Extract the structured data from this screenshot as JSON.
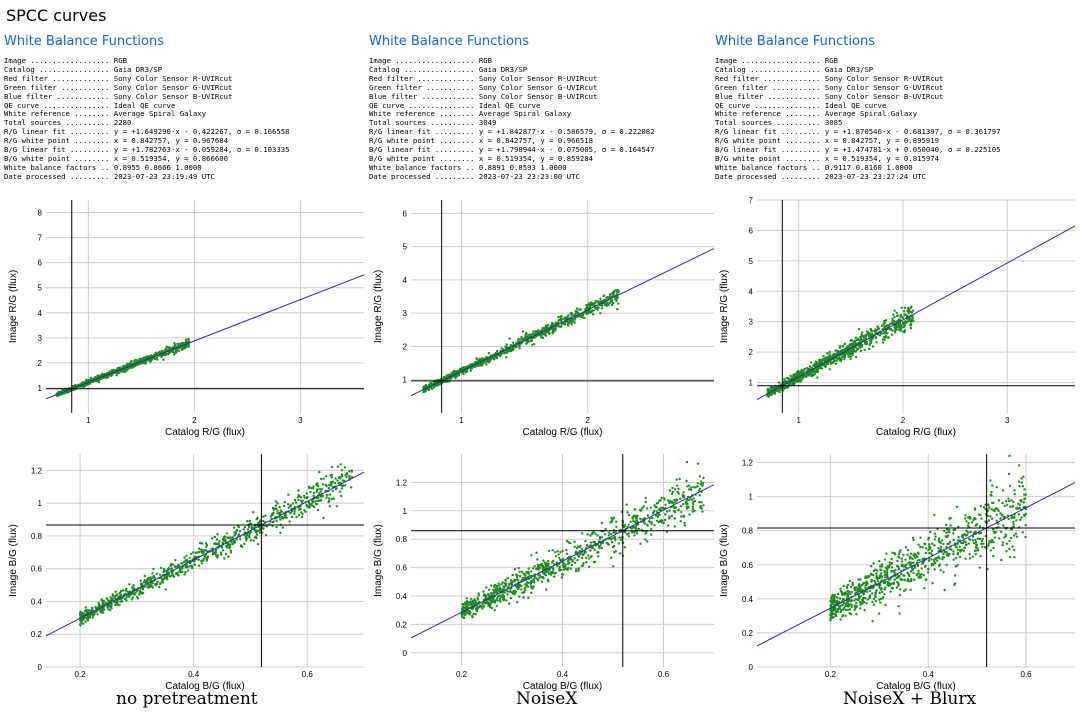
{
  "page_title": "SPCC curves",
  "columns": [
    {
      "wb_title": "White Balance Functions",
      "info_lines": [
        "Image .................. RGB",
        "Catalog ................ Gaia DR3/SP",
        "Red filter ............. Sony Color Sensor R-UVIRcut",
        "Green filter ........... Sony Color Sensor G-UVIRcut",
        "Blue filter ............ Sony Color Sensor B-UVIRcut",
        "QE curve ............... Ideal QE curve",
        "White reference ........ Average Spiral Galaxy",
        "Total sources .......... 2280",
        "R/G linear fit ......... y = +1.649290·x - 0.422267, σ = 0.166558",
        "R/G white point ........ x = 0.842757, y = 0.967684",
        "B/G linear fit ......... y = +1.782763·x - 0.059284, σ = 0.103335",
        "B/G white point ........ x = 0.519354, y = 0.866600",
        "White balance factors .. 0.8955 0.8666 1.0000",
        "Date processed ......... 2023-07-23 23:19:49 UTC"
      ],
      "caption": "no pretreatment"
    },
    {
      "wb_title": "White Balance Functions",
      "info_lines": [
        "Image .................. RGB",
        "Catalog ................ Gaia DR3/SP",
        "Red filter ............. Sony Color Sensor R-UVIRcut",
        "Green filter ........... Sony Color Sensor G-UVIRcut",
        "Blue filter ............ Sony Color Sensor B-UVIRcut",
        "QE curve ............... Ideal QE curve",
        "White reference ........ Average Spiral Galaxy",
        "Total sources .......... 3049",
        "R/G linear fit ......... y = +1.842877·x - 0.586579, σ = 0.222082",
        "R/G white point ........ x = 0.842757, y = 0.966518",
        "B/G linear fit ......... y = +1.798944·x - 0.075005, σ = 0.164547",
        "B/G white point ........ x = 0.519354, y = 0.859284",
        "White balance factors .. 0.8891 0.8593 1.0000",
        "Date processed ......... 2023-07-23 23:23:00 UTC"
      ],
      "caption": "NoiseX"
    },
    {
      "wb_title": "White Balance Functions",
      "info_lines": [
        "Image .................. RGB",
        "Catalog ................ Gaia DR3/SP",
        "Red filter ............. Sony Color Sensor R-UVIRcut",
        "Green filter ........... Sony Color Sensor G-UVIRcut",
        "Blue filter ............ Sony Color Sensor B-UVIRcut",
        "QE curve ............... Ideal QE curve",
        "White reference ........ Average Spiral Galaxy",
        "Total sources .......... 3085",
        "R/G linear fit ......... y = +1.870546·x - 0.681397, σ = 0.361797",
        "R/G white point ........ x = 0.842757, y = 0.895919",
        "B/G linear fit ......... y = +1.474781·x + 0.050040, σ = 0.225105",
        "B/G white point ........ x = 0.519354, y = 0.815974",
        "White balance factors .. 0.9117 0.8160 1.0000",
        "Date processed ......... 2023-07-23 23:27:24 UTC"
      ],
      "caption": "NoiseX + Blurx"
    }
  ],
  "colors": {
    "points": "#1e8c1e",
    "fit_line": "#2c2cb0",
    "grid": "#cccccc",
    "ref_line": "#000000",
    "title_blue": "#1565c0"
  },
  "chart_data": [
    {
      "type": "scatter",
      "column": 0,
      "row": "RG",
      "xlabel": "Catalog R/G (flux)",
      "ylabel": "Image R/G (flux)",
      "xlim": [
        0.6,
        3.6
      ],
      "ylim": [
        0,
        8.5
      ],
      "xticks": [
        1,
        2,
        3
      ],
      "yticks": [
        1,
        2,
        3,
        4,
        5,
        6,
        7,
        8
      ],
      "grid": true,
      "fit": {
        "slope": 1.64929,
        "intercept": -0.422267
      },
      "white_point": {
        "x": 0.842757,
        "y": 0.967684
      },
      "n_points": 2280,
      "spread": 0.166558,
      "point_range": [
        0.7,
        1.95
      ]
    },
    {
      "type": "scatter",
      "column": 1,
      "row": "RG",
      "xlabel": "Catalog R/G (flux)",
      "ylabel": "Image R/G (flux)",
      "xlim": [
        0.6,
        3.0
      ],
      "ylim": [
        0,
        6.4
      ],
      "xticks": [
        1,
        2
      ],
      "yticks": [
        1,
        2,
        3,
        4,
        5,
        6
      ],
      "grid": true,
      "fit": {
        "slope": 1.842877,
        "intercept": -0.586579
      },
      "white_point": {
        "x": 0.842757,
        "y": 0.966518
      },
      "n_points": 3049,
      "spread": 0.222082,
      "point_range": [
        0.7,
        2.25
      ]
    },
    {
      "type": "scatter",
      "column": 2,
      "row": "RG",
      "xlabel": "Catalog R/G (flux)",
      "ylabel": "Image R/G (flux)",
      "xlim": [
        0.6,
        3.65
      ],
      "ylim": [
        0,
        7.0
      ],
      "xticks": [
        1,
        2,
        3
      ],
      "yticks": [
        1,
        2,
        3,
        4,
        5,
        6,
        7
      ],
      "grid": true,
      "fit": {
        "slope": 1.870546,
        "intercept": -0.681397
      },
      "white_point": {
        "x": 0.842757,
        "y": 0.895919
      },
      "n_points": 3085,
      "spread": 0.361797,
      "point_range": [
        0.7,
        2.1
      ]
    },
    {
      "type": "scatter",
      "column": 0,
      "row": "BG",
      "xlabel": "Catalog B/G (flux)",
      "ylabel": "Image B/G (flux)",
      "xlim": [
        0.14,
        0.7
      ],
      "ylim": [
        0,
        1.3
      ],
      "xticks": [
        0.2,
        0.4,
        0.6
      ],
      "yticks": [
        0,
        0.2,
        0.4,
        0.6,
        0.8,
        1,
        1.2
      ],
      "grid": true,
      "fit": {
        "slope": 1.782763,
        "intercept": -0.059284
      },
      "white_point": {
        "x": 0.519354,
        "y": 0.8666
      },
      "n_points": 2280,
      "spread": 0.103335,
      "point_range": [
        0.2,
        0.68
      ]
    },
    {
      "type": "scatter",
      "column": 1,
      "row": "BG",
      "xlabel": "Catalog B/G (flux)",
      "ylabel": "Image B/G (flux)",
      "xlim": [
        0.1,
        0.7
      ],
      "ylim": [
        -0.1,
        1.4
      ],
      "xticks": [
        0.2,
        0.4,
        0.6
      ],
      "yticks": [
        0,
        0.2,
        0.4,
        0.6,
        0.8,
        1,
        1.2
      ],
      "grid": true,
      "fit": {
        "slope": 1.798944,
        "intercept": -0.075005
      },
      "white_point": {
        "x": 0.519354,
        "y": 0.859284
      },
      "n_points": 3049,
      "spread": 0.164547,
      "point_range": [
        0.2,
        0.68
      ]
    },
    {
      "type": "scatter",
      "column": 2,
      "row": "BG",
      "xlabel": "Catalog B/G (flux)",
      "ylabel": "Image B/G (flux)",
      "xlim": [
        0.05,
        0.7
      ],
      "ylim": [
        0,
        1.25
      ],
      "xticks": [
        0.2,
        0.4,
        0.6
      ],
      "yticks": [
        0,
        0.2,
        0.4,
        0.6,
        0.8,
        1,
        1.2
      ],
      "grid": true,
      "fit": {
        "slope": 1.474781,
        "intercept": 0.05004
      },
      "white_point": {
        "x": 0.519354,
        "y": 0.815974
      },
      "n_points": 3085,
      "spread": 0.225105,
      "point_range": [
        0.2,
        0.6
      ]
    }
  ]
}
